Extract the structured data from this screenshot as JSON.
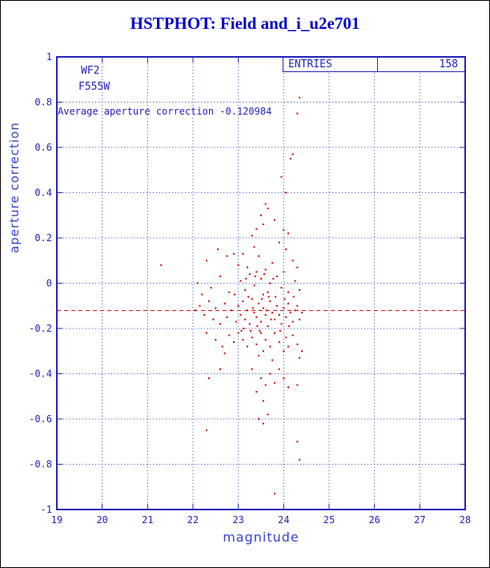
{
  "colors": {
    "blue": "#2222bb",
    "grid_blue": "#3344cc",
    "title_blue": "#0000cc",
    "red": "#cc0000"
  },
  "stats_box": {
    "label": "ENTRIES",
    "value": "158"
  },
  "annotations": {
    "camera": "WF2",
    "filter": "F555W",
    "average_text": "Average aperture correction -0.120984"
  },
  "chart_data": {
    "type": "scatter",
    "title": "HSTPHOT: Field and_i_u2e701",
    "xlabel": "magnitude",
    "ylabel": "aperture correction",
    "xlim": [
      19,
      28
    ],
    "ylim": [
      -1,
      1
    ],
    "x_ticks": [
      19,
      20,
      21,
      22,
      23,
      24,
      25,
      26,
      27,
      28
    ],
    "y_ticks": [
      -1,
      -0.8,
      -0.6,
      -0.4,
      -0.2,
      0,
      0.2,
      0.4,
      0.6,
      0.8,
      1
    ],
    "grid": true,
    "legend": "none",
    "entries": 158,
    "average_line": -0.120984,
    "points": [
      [
        24.35,
        0.82
      ],
      [
        24.3,
        0.75
      ],
      [
        24.2,
        0.57
      ],
      [
        24.15,
        0.55
      ],
      [
        23.95,
        0.47
      ],
      [
        24.05,
        0.4
      ],
      [
        23.6,
        0.35
      ],
      [
        23.65,
        0.33
      ],
      [
        23.5,
        0.3
      ],
      [
        23.8,
        0.28
      ],
      [
        23.55,
        0.26
      ],
      [
        23.4,
        0.24
      ],
      [
        24.0,
        0.235
      ],
      [
        24.1,
        0.22
      ],
      [
        23.3,
        0.21
      ],
      [
        22.55,
        0.15
      ],
      [
        22.75,
        0.12
      ],
      [
        23.1,
        0.13
      ],
      [
        23.35,
        0.16
      ],
      [
        23.45,
        0.12
      ],
      [
        23.9,
        0.18
      ],
      [
        24.05,
        0.15
      ],
      [
        24.2,
        0.1
      ],
      [
        23.0,
        0.08
      ],
      [
        23.2,
        0.07
      ],
      [
        23.6,
        0.06
      ],
      [
        23.75,
        0.09
      ],
      [
        24.3,
        0.07
      ],
      [
        21.3,
        0.08
      ],
      [
        22.3,
        0.1
      ],
      [
        22.9,
        0.13
      ],
      [
        22.1,
        0.0
      ],
      [
        22.4,
        -0.02
      ],
      [
        22.6,
        0.03
      ],
      [
        22.8,
        -0.04
      ],
      [
        23.05,
        0.01
      ],
      [
        23.15,
        -0.03
      ],
      [
        23.25,
        0.04
      ],
      [
        23.35,
        -0.01
      ],
      [
        23.5,
        0.02
      ],
      [
        23.55,
        -0.05
      ],
      [
        23.7,
        0.0
      ],
      [
        23.85,
        0.03
      ],
      [
        23.95,
        -0.02
      ],
      [
        24.0,
        0.05
      ],
      [
        24.1,
        -0.04
      ],
      [
        24.25,
        0.01
      ],
      [
        24.35,
        -0.03
      ],
      [
        22.2,
        -0.05
      ],
      [
        23.4,
        0.05
      ],
      [
        23.65,
        -0.04
      ],
      [
        22.05,
        -0.12
      ],
      [
        22.15,
        -0.1
      ],
      [
        22.25,
        -0.14
      ],
      [
        22.35,
        -0.08
      ],
      [
        22.45,
        -0.16
      ],
      [
        22.5,
        -0.11
      ],
      [
        22.6,
        -0.18
      ],
      [
        22.7,
        -0.09
      ],
      [
        22.75,
        -0.15
      ],
      [
        22.85,
        -0.12
      ],
      [
        22.95,
        -0.17
      ],
      [
        23.0,
        -0.1
      ],
      [
        23.05,
        -0.14
      ],
      [
        23.1,
        -0.08
      ],
      [
        23.15,
        -0.16
      ],
      [
        23.2,
        -0.12
      ],
      [
        23.25,
        -0.18
      ],
      [
        23.3,
        -0.07
      ],
      [
        23.35,
        -0.13
      ],
      [
        23.4,
        -0.15
      ],
      [
        23.45,
        -0.09
      ],
      [
        23.5,
        -0.17
      ],
      [
        23.55,
        -0.11
      ],
      [
        23.6,
        -0.14
      ],
      [
        23.65,
        -0.19
      ],
      [
        23.7,
        -0.08
      ],
      [
        23.75,
        -0.13
      ],
      [
        23.8,
        -0.16
      ],
      [
        23.85,
        -0.1
      ],
      [
        23.9,
        -0.14
      ],
      [
        23.95,
        -0.18
      ],
      [
        24.0,
        -0.11
      ],
      [
        24.05,
        -0.15
      ],
      [
        24.1,
        -0.09
      ],
      [
        24.15,
        -0.13
      ],
      [
        24.2,
        -0.17
      ],
      [
        24.25,
        -0.12
      ],
      [
        24.3,
        -0.1
      ],
      [
        24.35,
        -0.16
      ],
      [
        24.4,
        -0.13
      ],
      [
        22.3,
        -0.22
      ],
      [
        22.5,
        -0.25
      ],
      [
        22.65,
        -0.28
      ],
      [
        22.8,
        -0.23
      ],
      [
        22.9,
        -0.26
      ],
      [
        23.0,
        -0.22
      ],
      [
        23.1,
        -0.25
      ],
      [
        23.2,
        -0.28
      ],
      [
        23.3,
        -0.24
      ],
      [
        23.4,
        -0.27
      ],
      [
        23.5,
        -0.22
      ],
      [
        23.55,
        -0.3
      ],
      [
        23.6,
        -0.25
      ],
      [
        23.7,
        -0.28
      ],
      [
        23.8,
        -0.22
      ],
      [
        23.9,
        -0.26
      ],
      [
        24.0,
        -0.3
      ],
      [
        24.05,
        -0.24
      ],
      [
        24.1,
        -0.28
      ],
      [
        24.2,
        -0.23
      ],
      [
        24.3,
        -0.27
      ],
      [
        24.35,
        -0.33
      ],
      [
        24.4,
        -0.3
      ],
      [
        23.45,
        -0.32
      ],
      [
        23.75,
        -0.34
      ],
      [
        22.7,
        -0.31
      ],
      [
        23.3,
        -0.38
      ],
      [
        23.5,
        -0.42
      ],
      [
        23.6,
        -0.45
      ],
      [
        23.7,
        -0.4
      ],
      [
        23.8,
        -0.44
      ],
      [
        23.9,
        -0.38
      ],
      [
        24.0,
        -0.42
      ],
      [
        24.1,
        -0.46
      ],
      [
        24.3,
        -0.45
      ],
      [
        23.4,
        -0.48
      ],
      [
        23.55,
        -0.52
      ],
      [
        23.65,
        -0.58
      ],
      [
        23.45,
        -0.6
      ],
      [
        22.35,
        -0.42
      ],
      [
        22.6,
        -0.38
      ],
      [
        22.3,
        -0.65
      ],
      [
        23.55,
        -0.62
      ],
      [
        24.3,
        -0.7
      ],
      [
        24.35,
        -0.78
      ],
      [
        23.8,
        -0.93
      ],
      [
        23.12,
        -0.2
      ],
      [
        23.22,
        -0.06
      ],
      [
        23.32,
        -0.11
      ],
      [
        23.42,
        -0.19
      ],
      [
        23.52,
        -0.07
      ],
      [
        23.62,
        -0.12
      ],
      [
        23.72,
        -0.16
      ],
      [
        23.82,
        -0.06
      ],
      [
        23.92,
        -0.21
      ],
      [
        24.02,
        -0.07
      ],
      [
        24.12,
        -0.19
      ],
      [
        24.22,
        -0.06
      ],
      [
        23.07,
        -0.21
      ],
      [
        22.92,
        -0.05
      ],
      [
        23.17,
        0.02
      ],
      [
        23.27,
        -0.21
      ],
      [
        23.37,
        0.03
      ],
      [
        23.47,
        -0.21
      ],
      [
        23.57,
        0.04
      ],
      [
        23.67,
        -0.06
      ],
      [
        23.77,
        0.02
      ]
    ]
  }
}
